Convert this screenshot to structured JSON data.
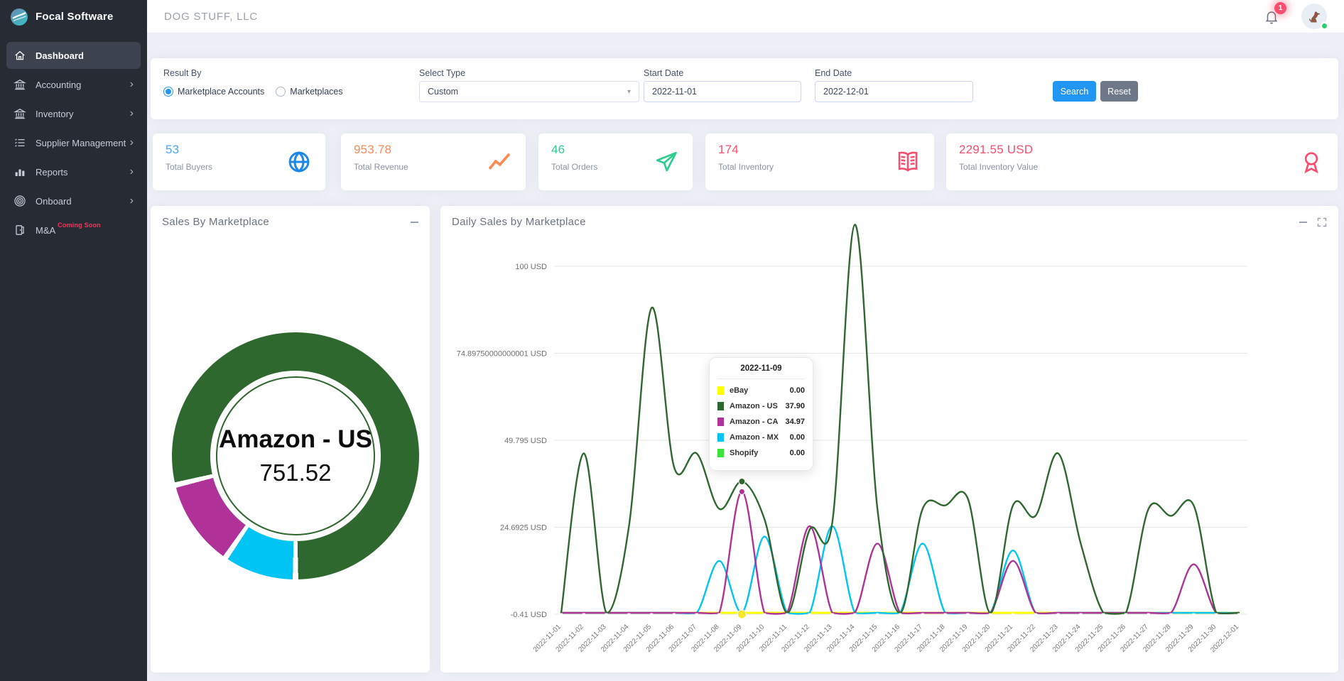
{
  "icons": {
    "chevron": "›",
    "caret": "▾"
  },
  "app": {
    "brand": "Focal Software",
    "company": "DOG STUFF, LLC",
    "notification_count": "1"
  },
  "sidebar": {
    "items": [
      {
        "label": "Dashboard",
        "icon": "home-icon",
        "active": true,
        "chevron": false
      },
      {
        "label": "Accounting",
        "icon": "bank-icon",
        "active": false,
        "chevron": true
      },
      {
        "label": "Inventory",
        "icon": "bank-icon",
        "active": false,
        "chevron": true
      },
      {
        "label": "Supplier Management",
        "icon": "list-icon",
        "active": false,
        "chevron": true
      },
      {
        "label": "Reports",
        "icon": "bar-chart-icon",
        "active": false,
        "chevron": true
      },
      {
        "label": "Onboard",
        "icon": "target-icon",
        "active": false,
        "chevron": true
      },
      {
        "label": "M&A",
        "icon": "door-icon",
        "active": false,
        "chevron": false,
        "badge": "Coming Soon"
      }
    ]
  },
  "filters": {
    "result_by_label": "Result By",
    "options": [
      {
        "label": "Marketplace Accounts",
        "selected": true
      },
      {
        "label": "Marketplaces",
        "selected": false
      }
    ],
    "select_type_label": "Select Type",
    "select_type_value": "Custom",
    "start_date_label": "Start Date",
    "start_date_value": "2022-11-01",
    "end_date_label": "End Date",
    "end_date_value": "2022-12-01",
    "search_label": "Search",
    "reset_label": "Reset"
  },
  "stats": [
    {
      "value": "53",
      "label": "Total Buyers",
      "color": "#4da3f5",
      "icon_color": "#1e88e5",
      "icon": "globe-icon"
    },
    {
      "value": "953.78",
      "label": "Total Revenue",
      "color": "#fd8a54",
      "icon_color": "#fd8a54",
      "icon": "trend-icon"
    },
    {
      "value": "46",
      "label": "Total Orders",
      "color": "#2ecc8e",
      "icon_color": "#2ecc8e",
      "icon": "send-icon"
    },
    {
      "value": "174",
      "label": "Total Inventory",
      "color": "#fb4d6d",
      "icon_color": "#fb4d6d",
      "icon": "book-icon"
    },
    {
      "value": "2291.55 USD",
      "label": "Total Inventory Value",
      "color": "#fb4d6d",
      "icon_color": "#fb4d6d",
      "icon": "award-icon"
    }
  ],
  "panels": {
    "donut_title": "Sales By Marketplace",
    "line_title": "Daily Sales by Marketplace"
  },
  "chart_data": [
    {
      "type": "pie",
      "title": "Sales By Marketplace",
      "unit": "USD",
      "labels": [
        "Amazon - US",
        "Amazon - CA",
        "Amazon - MX"
      ],
      "values": [
        751.52,
        110.77,
        91.49
      ],
      "colors": [
        "#2e682f",
        "#b03298",
        "#00c4f4"
      ],
      "center_label": "Amazon - US",
      "center_value": "751.52",
      "note": "Center shows hovered slice Amazon - US = 751.52; CA/MX estimated from arc angles, total = 953.78"
    },
    {
      "type": "line",
      "title": "Daily Sales by Marketplace",
      "x": [
        "2022-11-01",
        "2022-11-02",
        "2022-11-03",
        "2022-11-04",
        "2022-11-05",
        "2022-11-06",
        "2022-11-07",
        "2022-11-08",
        "2022-11-09",
        "2022-11-10",
        "2022-11-11",
        "2022-11-12",
        "2022-11-13",
        "2022-11-14",
        "2022-11-15",
        "2022-11-16",
        "2022-11-17",
        "2022-11-18",
        "2022-11-19",
        "2022-11-20",
        "2022-11-21",
        "2022-11-22",
        "2022-11-23",
        "2022-11-24",
        "2022-11-25",
        "2022-11-26",
        "2022-11-27",
        "2022-11-28",
        "2022-11-29",
        "2022-11-30",
        "2022-12-01"
      ],
      "ytick_labels": [
        "100 USD",
        "74.89750000000001 USD",
        "49.795 USD",
        "24.6925 USD",
        "-0.41 USD"
      ],
      "ytick_values": [
        100,
        74.89750000000001,
        49.795,
        24.6925,
        -0.41
      ],
      "ylim": [
        -0.41,
        112
      ],
      "note": "Series values estimated from curve heights except 2022-11-09 which is shown in tooltip",
      "series": [
        {
          "name": "eBay",
          "color": "#ffff00",
          "values": [
            0,
            0,
            0,
            0,
            0,
            0,
            0,
            0,
            0,
            0,
            0,
            0,
            0,
            0,
            0,
            0,
            0,
            0,
            0,
            0,
            0,
            0,
            0,
            0,
            0,
            0,
            0,
            0,
            0,
            0,
            0
          ]
        },
        {
          "name": "Amazon - US",
          "color": "#2e682f",
          "values": [
            0,
            46,
            0,
            25,
            88,
            42,
            46,
            30,
            37.9,
            27,
            0,
            24,
            26,
            112,
            30,
            0,
            30,
            31,
            33,
            0,
            31,
            28,
            46,
            20,
            0,
            0,
            30,
            28,
            31,
            0,
            0
          ]
        },
        {
          "name": "Amazon - CA",
          "color": "#b03298",
          "values": [
            0,
            0,
            0,
            0,
            0,
            0,
            0,
            0,
            34.97,
            0,
            0,
            25,
            0,
            0,
            20,
            0,
            0,
            0,
            0,
            0,
            15,
            0,
            0,
            0,
            0,
            0,
            0,
            0,
            14,
            0,
            0
          ]
        },
        {
          "name": "Amazon - MX",
          "color": "#00c4f4",
          "values": [
            0,
            0,
            0,
            0,
            0,
            0,
            0,
            15,
            0,
            22,
            0,
            0,
            25,
            0,
            0,
            0,
            20,
            0,
            0,
            0,
            18,
            0,
            0,
            0,
            0,
            0,
            0,
            0,
            0,
            0,
            0
          ]
        },
        {
          "name": "Shopify",
          "color": "#3be33b",
          "values": [
            0,
            0,
            0,
            0,
            0,
            0,
            0,
            0,
            0,
            0,
            0,
            0,
            0,
            0,
            0,
            0,
            0,
            0,
            0,
            0,
            0,
            0,
            0,
            0,
            0,
            0,
            0,
            0,
            0,
            0,
            0
          ]
        }
      ],
      "hover_index": 8,
      "tooltip": {
        "date": "2022-11-09",
        "rows": [
          {
            "name": "eBay",
            "value": "0.00",
            "color": "#ffff00"
          },
          {
            "name": "Amazon - US",
            "value": "37.90",
            "color": "#2e682f"
          },
          {
            "name": "Amazon - CA",
            "value": "34.97",
            "color": "#b03298"
          },
          {
            "name": "Amazon - MX",
            "value": "0.00",
            "color": "#00c4f4"
          },
          {
            "name": "Shopify",
            "value": "0.00",
            "color": "#3be33b"
          }
        ]
      }
    }
  ]
}
